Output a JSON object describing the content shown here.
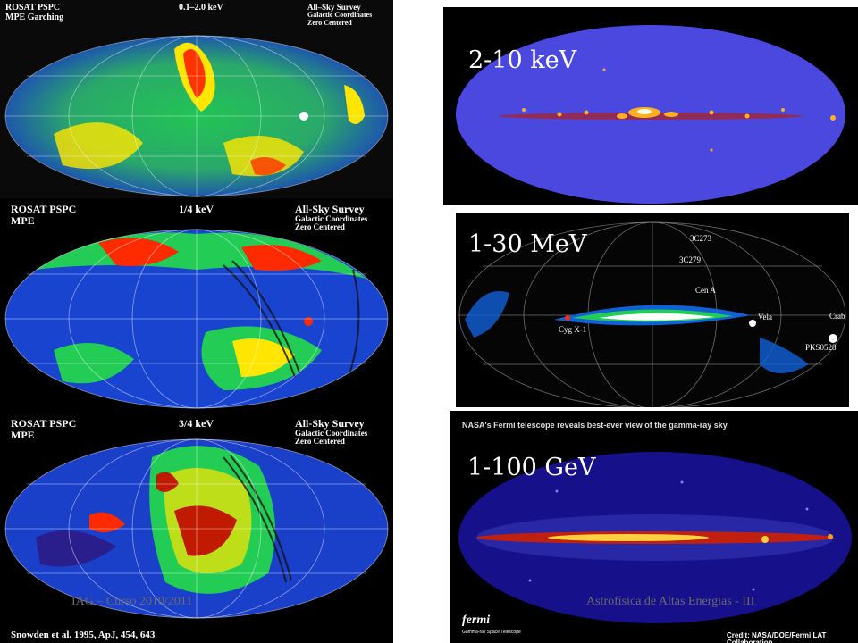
{
  "colors": {
    "hot": "#ff2a00",
    "warm": "#ffe600",
    "mid": "#22cc44",
    "cold": "#1533c8",
    "deep": "#2a1e8c"
  },
  "panels": {
    "rosat_total": {
      "l1": "ROSAT PSPC",
      "l2": "MPE Garching",
      "energy": "0.1–2.0 keV",
      "r1": "All–Sky Survey",
      "r2": "Galactic Coordinates",
      "r3": "Zero Centered"
    },
    "rosat_quarter": {
      "l1": "ROSAT PSPC",
      "l2": "MPE",
      "energy": "1/4 keV",
      "r1": "All-Sky Survey",
      "r2": "Galactic Coordinates",
      "r3": "Zero Centered"
    },
    "rosat_threequarter": {
      "l1": "ROSAT PSPC",
      "l2": "MPE",
      "energy": "3/4 keV",
      "r1": "All-Sky Survey",
      "r2": "Galactic Coordinates",
      "r3": "Zero Centered",
      "citation": "Snowden et al. 1995, ApJ, 454, 643"
    },
    "hard_xray": {
      "label": "2-10 keV"
    },
    "comptel": {
      "label": "1-30 MeV",
      "sources": [
        "3C273",
        "3C279",
        "Cen A",
        "Vela",
        "Crab",
        "Cyg X-1",
        "PKS0528"
      ]
    },
    "fermi": {
      "label": "1-100 GeV",
      "banner": "NASA's Fermi telescope reveals best-ever view of the gamma-ray sky",
      "credit": "Credit: NASA/DOE/Fermi LAT Collaboration",
      "logo": "fermi",
      "logo_sub": "Gamma-ray Space Telescope"
    }
  },
  "footer": {
    "left": "IAG – Curso 2010/2011",
    "right": "Astrofísica de Altas Energias - III"
  }
}
